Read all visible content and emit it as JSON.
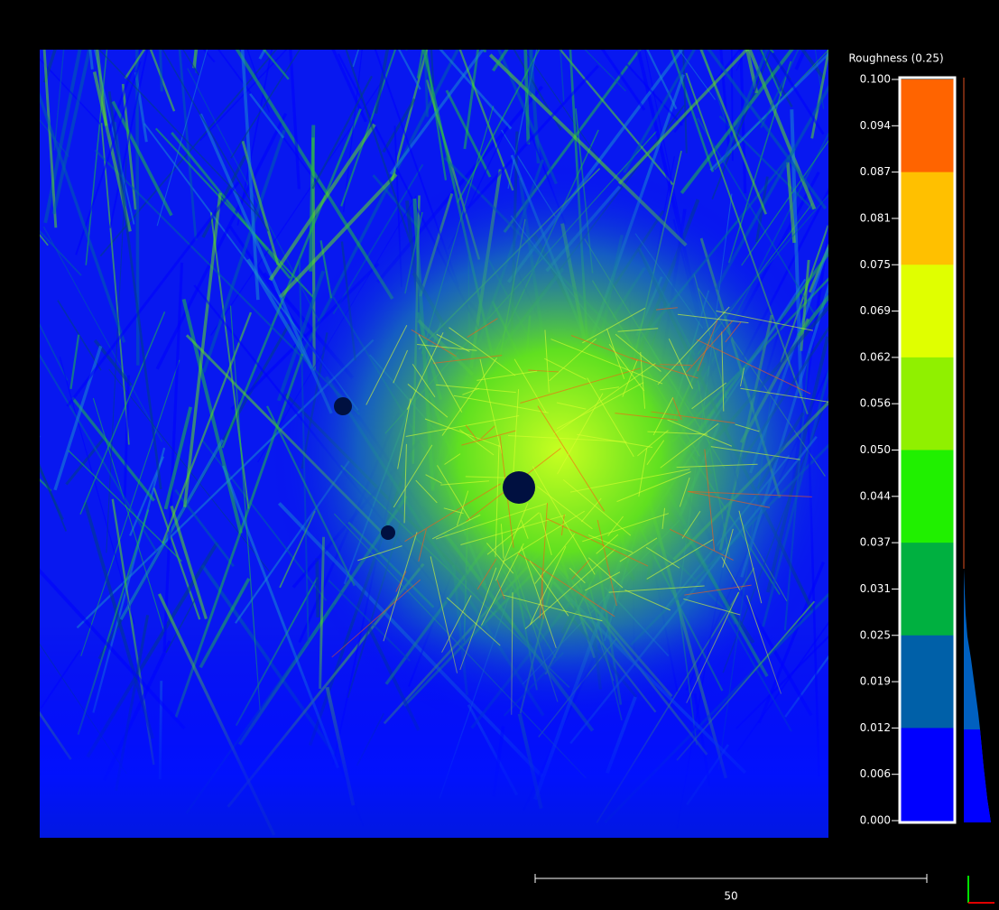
{
  "scale": {
    "title": "Roughness (0.25)",
    "ticks": [
      "0.100",
      "0.094",
      "0.087",
      "0.081",
      "0.075",
      "0.069",
      "0.062",
      "0.056",
      "0.050",
      "0.044",
      "0.037",
      "0.031",
      "0.025",
      "0.019",
      "0.012",
      "0.006",
      "0.000"
    ],
    "colors": [
      "#ff6400",
      "#ffc000",
      "#e0ff00",
      "#90f000",
      "#20f000",
      "#00b040",
      "#0060a8",
      "#0000ff"
    ]
  },
  "scalebar": {
    "label": "50"
  }
}
